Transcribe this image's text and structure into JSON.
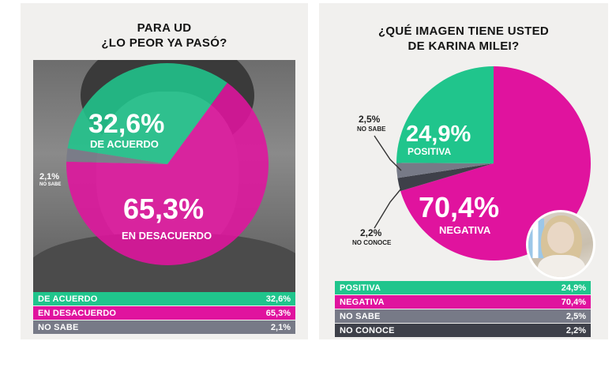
{
  "colors": {
    "green": "#20c58c",
    "magenta": "#e0139e",
    "gray": "#777a87",
    "darkgray": "#3e4049"
  },
  "left_panel": {
    "title_line1": "PARA UD",
    "title_line2": "¿LO PEOR YA PASÓ?",
    "labels": {
      "acuerdo_pct": "32,6%",
      "acuerdo_name": "DE ACUERDO",
      "desacuerdo_pct": "65,3%",
      "desacuerdo_name": "EN DESACUERDO",
      "nosabe_pct": "2,1%",
      "nosabe_name": "NO SABE"
    },
    "table": [
      {
        "label": "DE ACUERDO",
        "value": "32,6%",
        "color": "#20c58c"
      },
      {
        "label": "EN DESACUERDO",
        "value": "65,3%",
        "color": "#e0139e"
      },
      {
        "label": "NO SABE",
        "value": "2,1%",
        "color": "#777a87"
      }
    ]
  },
  "right_panel": {
    "title_line1": "¿QUÉ IMAGEN TIENE USTED",
    "title_line2": "DE KARINA MILEI?",
    "labels": {
      "positiva_pct": "24,9%",
      "positiva_name": "POSITIVA",
      "negativa_pct": "70,4%",
      "negativa_name": "NEGATIVA",
      "nosabe_pct": "2,5%",
      "nosabe_name": "NO SABE",
      "noconoce_pct": "2,2%",
      "noconoce_name": "NO CONOCE"
    },
    "table": [
      {
        "label": "POSITIVA",
        "value": "24,9%",
        "color": "#20c58c"
      },
      {
        "label": "NEGATIVA",
        "value": "70,4%",
        "color": "#e0139e"
      },
      {
        "label": "NO SABE",
        "value": "2,5%",
        "color": "#777a87"
      },
      {
        "label": "NO CONOCE",
        "value": "2,2%",
        "color": "#3e4049"
      }
    ]
  },
  "chart_data": [
    {
      "type": "pie",
      "title": "PARA UD ¿LO PEOR YA PASÓ?",
      "categories": [
        "DE ACUERDO",
        "EN DESACUERDO",
        "NO SABE"
      ],
      "values": [
        32.6,
        65.3,
        2.1
      ],
      "colors": [
        "#20c58c",
        "#e0139e",
        "#777a87"
      ]
    },
    {
      "type": "pie",
      "title": "¿QUÉ IMAGEN TIENE USTED DE KARINA MILEI?",
      "categories": [
        "POSITIVA",
        "NEGATIVA",
        "NO SABE",
        "NO CONOCE"
      ],
      "values": [
        24.9,
        70.4,
        2.5,
        2.2
      ],
      "colors": [
        "#20c58c",
        "#e0139e",
        "#777a87",
        "#3e4049"
      ]
    }
  ]
}
